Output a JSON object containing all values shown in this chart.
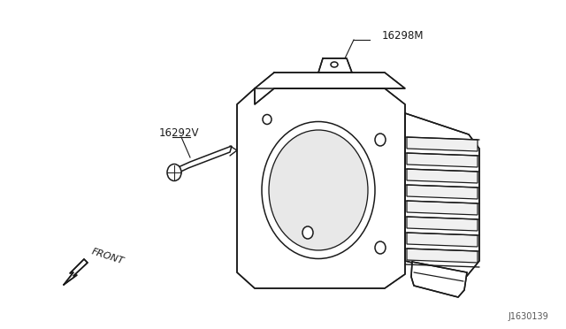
{
  "bg_color": "#ffffff",
  "line_color": "#1a1a1a",
  "label_16298M": "16298M",
  "label_16292V": "16292V",
  "label_front": "FRONT",
  "label_diagram_id": "J1630139",
  "lw": 1.1,
  "figw": 6.4,
  "figh": 3.72,
  "dpi": 100
}
